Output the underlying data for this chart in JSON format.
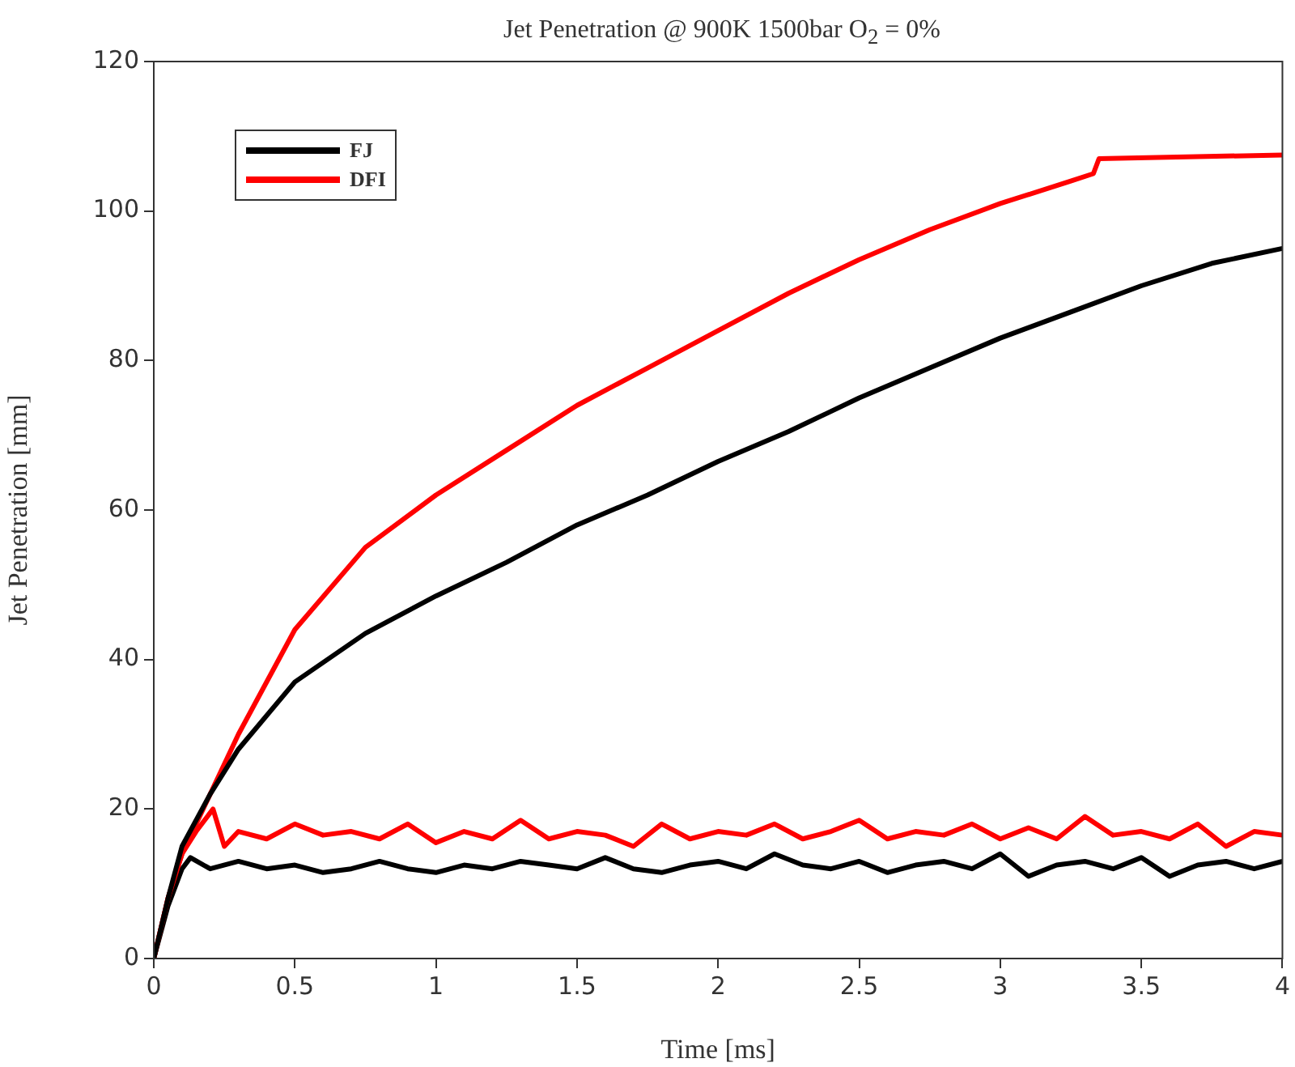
{
  "chart_data": {
    "type": "line",
    "title": "Jet Penetration @ 900K 1500bar O$_{2}$ = 0%",
    "xlabel": "Time [ms]",
    "ylabel": "Jet Penetration [mm]",
    "xlim": [
      0,
      4
    ],
    "xticks": [
      0,
      0.5,
      1,
      1.5,
      2,
      2.5,
      3,
      3.5,
      4
    ],
    "ylim": [
      0,
      120
    ],
    "yticks": [
      0,
      20,
      40,
      60,
      80,
      100,
      120
    ],
    "grid": false,
    "legend": "top left",
    "marker": "none",
    "line_style": "solid",
    "series": [
      {
        "name": "FJ",
        "color": "#000000",
        "x": [
          0,
          0.05,
          0.1,
          0.2,
          0.3,
          0.5,
          0.75,
          1,
          1.25,
          1.5,
          1.75,
          2,
          2.25,
          2.5,
          2.75,
          3,
          3.25,
          3.5,
          3.75,
          4
        ],
        "values": [
          0,
          8,
          15,
          22,
          28,
          37,
          43.5,
          48.5,
          53,
          58,
          62,
          66.5,
          70.5,
          75,
          79,
          83,
          86.5,
          90,
          93,
          95
        ]
      },
      {
        "name": "DFI",
        "color": "#ff0000",
        "x": [
          0,
          0.05,
          0.1,
          0.2,
          0.3,
          0.5,
          0.75,
          1,
          1.25,
          1.5,
          1.75,
          2,
          2.25,
          2.5,
          2.75,
          3,
          3.25,
          3.33,
          3.35,
          4
        ],
        "values": [
          0,
          8,
          14,
          22,
          30,
          44,
          55,
          62,
          68,
          74,
          79,
          84,
          89,
          93.5,
          97.5,
          101,
          104,
          105,
          107,
          107.5
        ]
      },
      {
        "color": "#000000",
        "x": [
          0,
          0.05,
          0.1,
          0.13,
          0.2,
          0.3,
          0.4,
          0.5,
          0.6,
          0.7,
          0.8,
          0.9,
          1,
          1.1,
          1.2,
          1.3,
          1.4,
          1.5,
          1.6,
          1.7,
          1.8,
          1.9,
          2,
          2.1,
          2.2,
          2.3,
          2.4,
          2.5,
          2.6,
          2.7,
          2.8,
          2.9,
          3,
          3.1,
          3.2,
          3.3,
          3.4,
          3.5,
          3.6,
          3.7,
          3.8,
          3.9,
          4
        ],
        "values": [
          0,
          7,
          12,
          13.5,
          12,
          13,
          12,
          12.5,
          11.5,
          12,
          13,
          12,
          11.5,
          12.5,
          12,
          13,
          12.5,
          12,
          13.5,
          12,
          11.5,
          12.5,
          13,
          12,
          14,
          12.5,
          12,
          13,
          11.5,
          12.5,
          13,
          12,
          14,
          11,
          12.5,
          13,
          12,
          13.5,
          11,
          12.5,
          13,
          12,
          13
        ]
      },
      {
        "color": "#ff0000",
        "x": [
          0,
          0.05,
          0.1,
          0.15,
          0.21,
          0.25,
          0.3,
          0.4,
          0.5,
          0.6,
          0.7,
          0.8,
          0.9,
          1,
          1.1,
          1.2,
          1.3,
          1.4,
          1.5,
          1.6,
          1.7,
          1.8,
          1.9,
          2,
          2.1,
          2.2,
          2.3,
          2.4,
          2.5,
          2.6,
          2.7,
          2.8,
          2.9,
          3,
          3.1,
          3.2,
          3.3,
          3.4,
          3.5,
          3.6,
          3.7,
          3.8,
          3.9,
          4
        ],
        "values": [
          0,
          8,
          14,
          17,
          20,
          15,
          17,
          16,
          18,
          16.5,
          17,
          16,
          18,
          15.5,
          17,
          16,
          18.5,
          16,
          17,
          16.5,
          15,
          18,
          16,
          17,
          16.5,
          18,
          16,
          17,
          18.5,
          16,
          17,
          16.5,
          18,
          16,
          17.5,
          16,
          19,
          16.5,
          17,
          16,
          18,
          15,
          17,
          16.5
        ]
      }
    ]
  }
}
